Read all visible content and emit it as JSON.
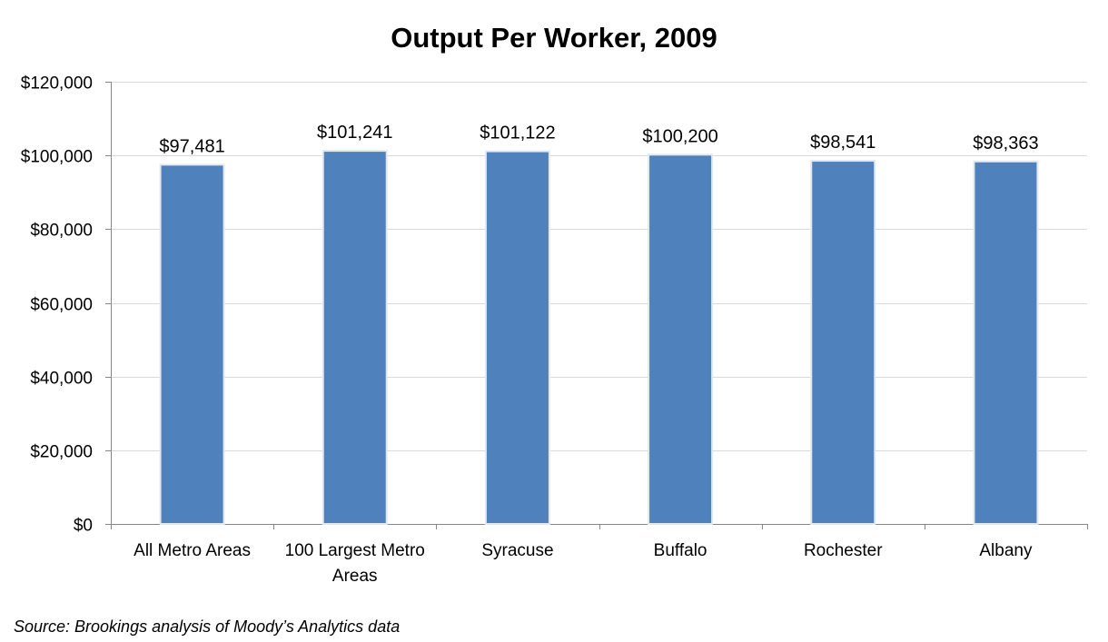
{
  "chart_data": {
    "type": "bar",
    "title": "Output Per Worker, 2009",
    "categories": [
      [
        "All Metro Areas"
      ],
      [
        "100 Largest Metro",
        "Areas"
      ],
      [
        "Syracuse"
      ],
      [
        "Buffalo"
      ],
      [
        "Rochester"
      ],
      [
        "Albany"
      ]
    ],
    "values": [
      97481,
      101241,
      101122,
      100200,
      98541,
      98363
    ],
    "data_labels": [
      "$97,481",
      "$101,241",
      "$101,122",
      "$100,200",
      "$98,541",
      "$98,363"
    ],
    "y_ticks": [
      0,
      20000,
      40000,
      60000,
      80000,
      100000,
      120000
    ],
    "y_tick_labels": [
      "$0",
      "$20,000",
      "$40,000",
      "$60,000",
      "$80,000",
      "$100,000",
      "$120,000"
    ],
    "ylim": [
      0,
      120000
    ],
    "xlabel": "",
    "ylabel": "",
    "grid": true,
    "legend": "none",
    "colors": {
      "bar": "#4f81bd",
      "bar_outline": "#e2e8f0",
      "grid": "#d9d9d9",
      "axis": "#868686"
    }
  },
  "source": "Source: Brookings analysis of Moody’s Analytics data"
}
